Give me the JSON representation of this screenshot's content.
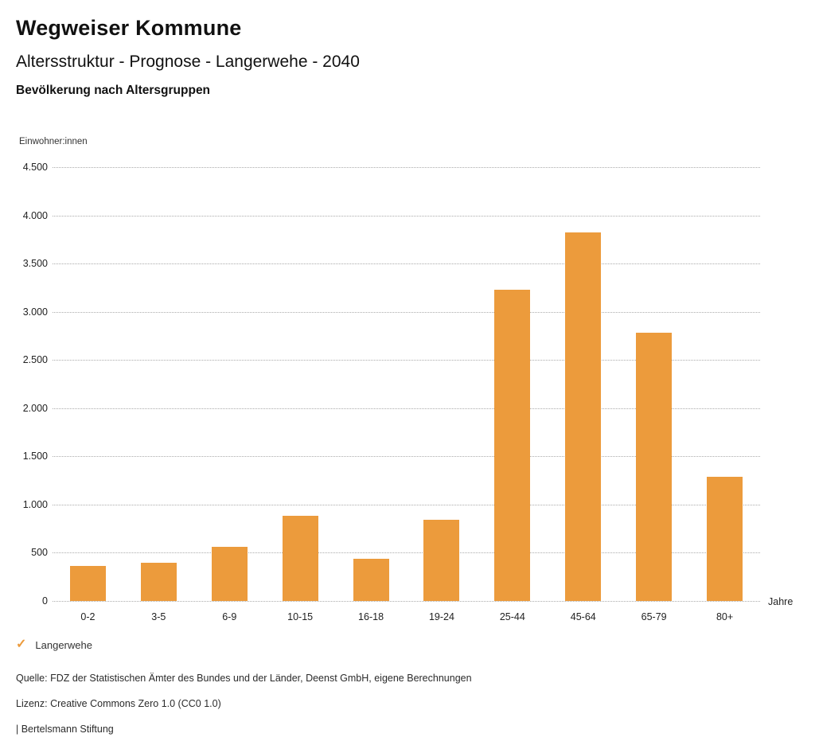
{
  "header": {
    "title": "Wegweiser Kommune",
    "subtitle": "Altersstruktur - Prognose - Langerwehe - 2040",
    "chart_heading": "Bevölkerung nach Altersgruppen"
  },
  "chart_data": {
    "type": "bar",
    "title": "Bevölkerung nach Altersgruppen",
    "xlabel": "Jahre",
    "ylabel": "Einwohner:innen",
    "categories": [
      "0-2",
      "3-5",
      "6-9",
      "10-15",
      "16-18",
      "19-24",
      "25-44",
      "45-64",
      "65-79",
      "80+"
    ],
    "values": [
      365,
      400,
      560,
      885,
      435,
      840,
      3225,
      3820,
      2780,
      1290
    ],
    "series": [
      {
        "name": "Langerwehe",
        "values": [
          365,
          400,
          560,
          885,
          435,
          840,
          3225,
          3820,
          2780,
          1290
        ]
      }
    ],
    "ylim": [
      0,
      4500
    ],
    "y_tick_step": 500,
    "y_ticks": [
      {
        "value": 0,
        "label": "0"
      },
      {
        "value": 500,
        "label": "500"
      },
      {
        "value": 1000,
        "label": "1.000"
      },
      {
        "value": 1500,
        "label": "1.500"
      },
      {
        "value": 2000,
        "label": "2.000"
      },
      {
        "value": 2500,
        "label": "2.500"
      },
      {
        "value": 3000,
        "label": "3.000"
      },
      {
        "value": 3500,
        "label": "3.500"
      },
      {
        "value": 4000,
        "label": "4.000"
      },
      {
        "value": 4500,
        "label": "4.500"
      }
    ],
    "grid": "horizontal-dotted",
    "legend_position": "bottom-left",
    "bar_color": "#EC9B3C"
  },
  "legend": {
    "check_icon": "✓",
    "label": "Langerwehe"
  },
  "footer": {
    "source": "Quelle: FDZ der Statistischen Ämter des Bundes und der Länder, Deenst GmbH, eigene Berechnungen",
    "license": "Lizenz: Creative Commons Zero 1.0 (CC0 1.0)",
    "attribution": "| Bertelsmann Stiftung"
  },
  "colors": {
    "bar": "#EC9B3C",
    "grid": "#ABABAB",
    "text": "#1A1A1A"
  }
}
